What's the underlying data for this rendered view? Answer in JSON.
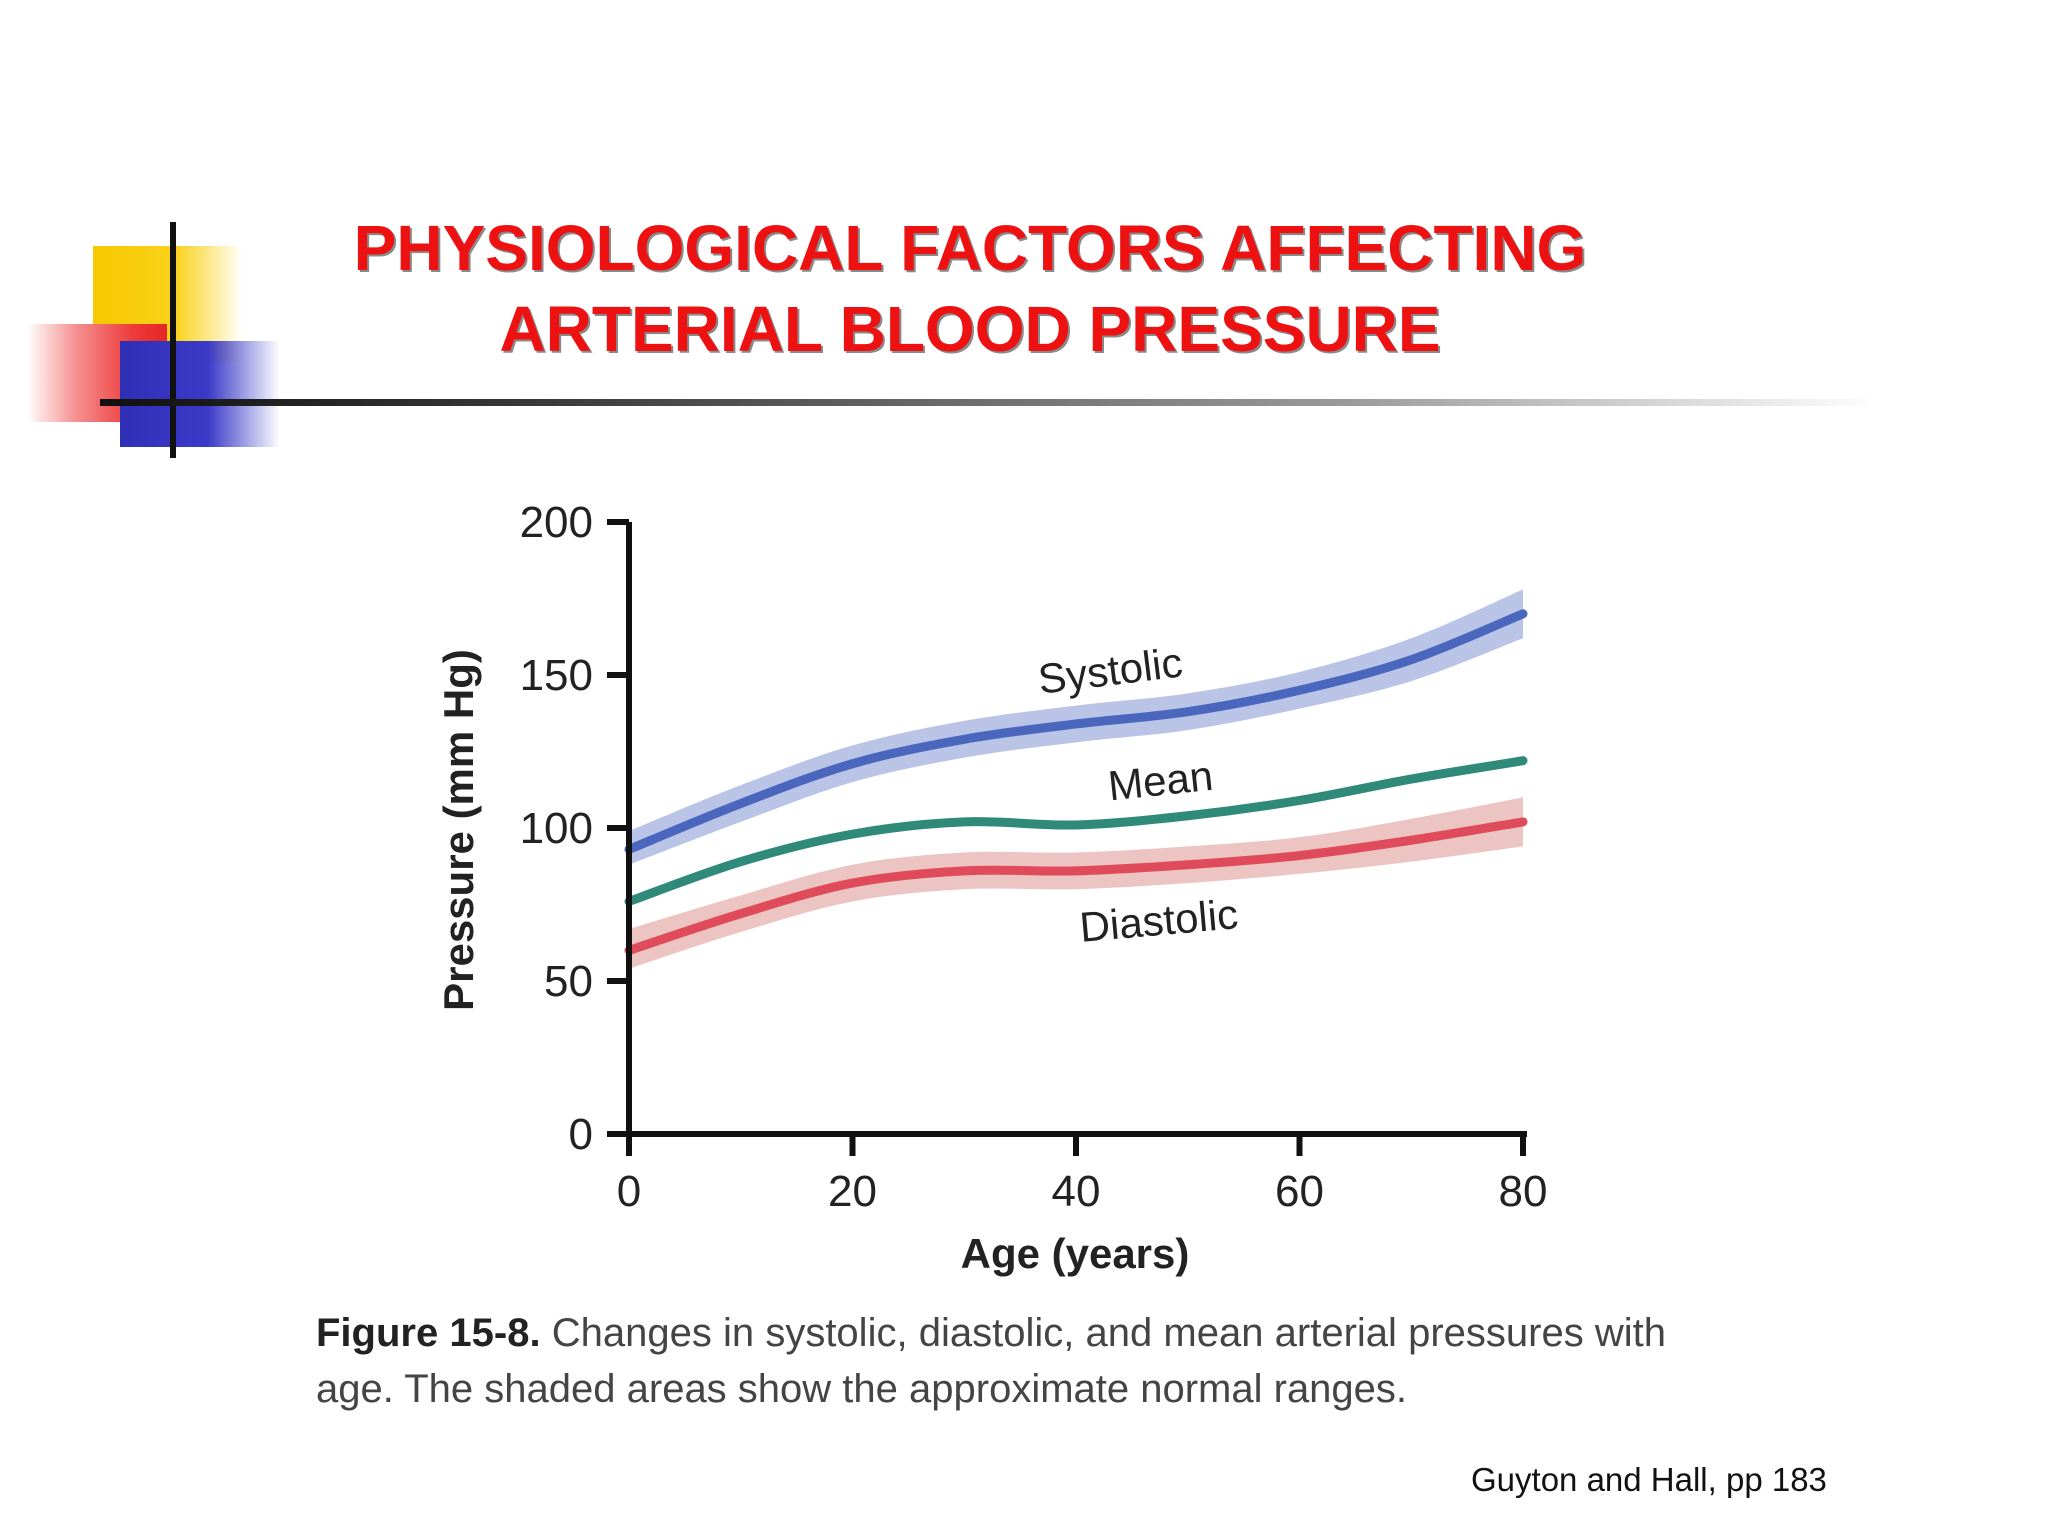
{
  "slide": {
    "title_line1": "PHYSIOLOGICAL FACTORS AFFECTING",
    "title_line2": "ARTERIAL BLOOD PRESSURE",
    "caption_label": "Figure 15-8.",
    "caption_text": " Changes in systolic, diastolic, and mean arterial pressures with age. The shaded areas show the approximate normal ranges.",
    "credit": "Guyton and Hall, pp 183",
    "accent_colors": {
      "title": "#ee1111",
      "logo_yellow": "#f7c800",
      "logo_red": "#e62626",
      "logo_blue": "#2f2fb6"
    }
  },
  "chart_data": {
    "type": "line",
    "title": "",
    "xlabel": "Age (years)",
    "ylabel": "Pressure (mm Hg)",
    "xlim": [
      0,
      80
    ],
    "ylim": [
      0,
      200
    ],
    "x_ticks": [
      0,
      20,
      40,
      60,
      80
    ],
    "y_ticks": [
      0,
      50,
      100,
      150,
      200
    ],
    "grid": false,
    "legend": "inline labels",
    "series": [
      {
        "name": "Systolic",
        "color": "#4a66bd",
        "band_color": "#b9c4e6",
        "x": [
          0,
          10,
          20,
          30,
          40,
          50,
          60,
          70,
          80
        ],
        "values": [
          93,
          108,
          121,
          129,
          134,
          138,
          145,
          155,
          170
        ],
        "band": [
          [
            88,
            99
          ],
          [
            102,
            114
          ],
          [
            115,
            127
          ],
          [
            123,
            135
          ],
          [
            128,
            140
          ],
          [
            132,
            144
          ],
          [
            139,
            151
          ],
          [
            148,
            162
          ],
          [
            162,
            178
          ]
        ]
      },
      {
        "name": "Mean",
        "color": "#2f8a7a",
        "x": [
          0,
          10,
          20,
          30,
          40,
          50,
          60,
          70,
          80
        ],
        "values": [
          76,
          89,
          98,
          102,
          101,
          104,
          109,
          116,
          122
        ]
      },
      {
        "name": "Diastolic",
        "color": "#e04b5c",
        "band_color": "#ecc5c2",
        "x": [
          0,
          10,
          20,
          30,
          40,
          50,
          60,
          70,
          80
        ],
        "values": [
          60,
          72,
          82,
          86,
          86,
          88,
          91,
          96,
          102
        ],
        "band": [
          [
            54,
            67
          ],
          [
            66,
            78
          ],
          [
            76,
            88
          ],
          [
            80,
            92
          ],
          [
            80,
            92
          ],
          [
            82,
            94
          ],
          [
            85,
            97
          ],
          [
            89,
            103
          ],
          [
            94,
            110
          ]
        ]
      }
    ]
  }
}
